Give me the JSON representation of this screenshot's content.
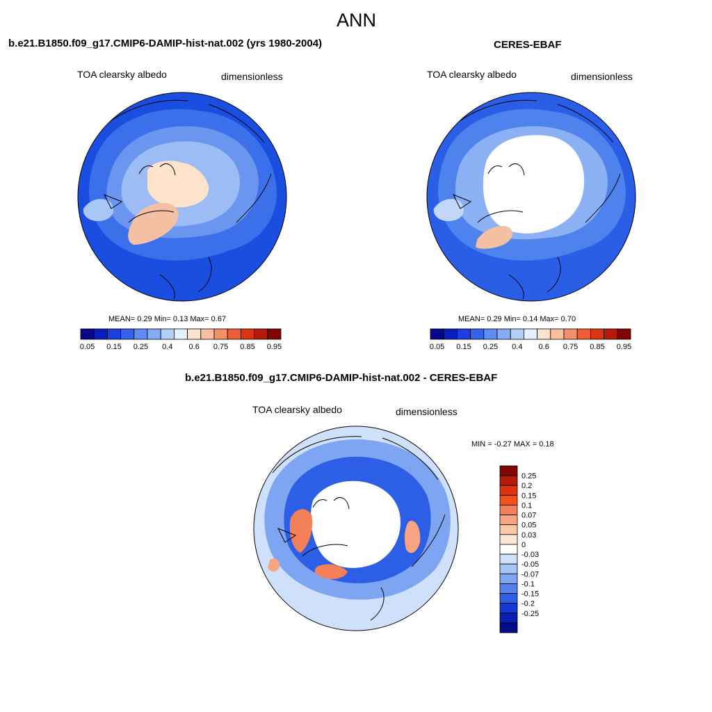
{
  "figure": {
    "title": "ANN"
  },
  "panels": [
    {
      "title": "b.e21.B1850.f09_g17.CMIP6-DAMIP-hist-nat.002 (yrs 1980-2004)",
      "left_label": "TOA clearsky albedo",
      "right_label": "dimensionless",
      "stats": "MEAN=   0.29   Min=    0.13   Max=    0.67"
    },
    {
      "title": "CERES-EBAF",
      "left_label": "TOA clearsky albedo",
      "right_label": "dimensionless",
      "stats": "MEAN=   0.29   Min=    0.14   Max=    0.70"
    },
    {
      "title": "b.e21.B1850.f09_g17.CMIP6-DAMIP-hist-nat.002 - CERES-EBAF",
      "left_label": "TOA clearsky albedo",
      "right_label": "dimensionless",
      "stats": "MIN =   -0.27  MAX =    0.18"
    }
  ],
  "colorbar_horizontal": {
    "ticks": [
      "0.05",
      "0.15",
      "0.25",
      "0.4",
      "0.6",
      "0.75",
      "0.85",
      "0.95"
    ],
    "colors": [
      "#08068a",
      "#0a1ec0",
      "#1a3ee0",
      "#3462ea",
      "#5e8cf0",
      "#86adf4",
      "#b4cff8",
      "#e6f0ff",
      "#fde2cc",
      "#f9bfa0",
      "#f48f68",
      "#ee5c36",
      "#dc3410",
      "#b51a08",
      "#820600"
    ]
  },
  "colorbar_vertical": {
    "ticks": [
      "0.25",
      "0.2",
      "0.15",
      "0.1",
      "0.07",
      "0.05",
      "0.03",
      "0",
      "-0.03",
      "-0.05",
      "-0.07",
      "-0.1",
      "-0.15",
      "-0.2",
      "-0.25"
    ],
    "colors": [
      "#820600",
      "#b51a08",
      "#dc3410",
      "#f4501e",
      "#f4805a",
      "#f8a482",
      "#fcc9a8",
      "#fde8d8",
      "#ffffff",
      "#cfe0fb",
      "#a7c4f6",
      "#7ea5f2",
      "#5482ec",
      "#2c5ee6",
      "#1638d2",
      "#0a1eb4",
      "#060a88"
    ]
  }
}
